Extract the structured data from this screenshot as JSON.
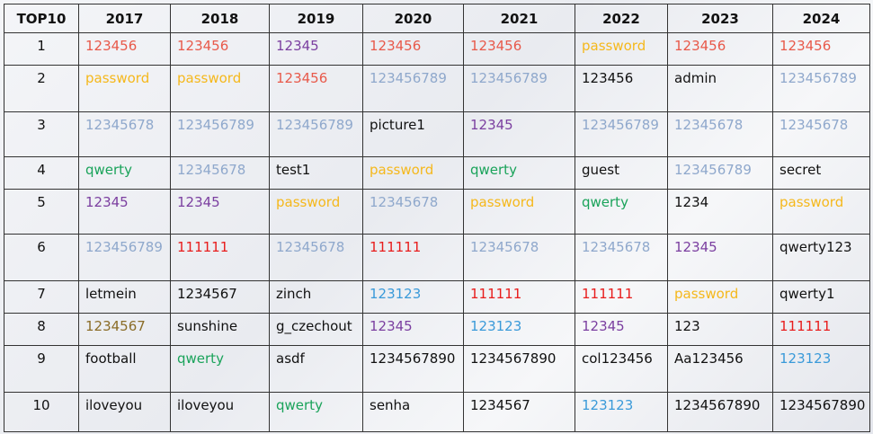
{
  "table": {
    "header": [
      "TOP10",
      "2017",
      "2018",
      "2019",
      "2020",
      "2021",
      "2022",
      "2023",
      "2024"
    ],
    "rows": [
      {
        "rank": "1",
        "cells": [
          {
            "text": "123456",
            "color": "#e8594a"
          },
          {
            "text": "123456",
            "color": "#e8594a"
          },
          {
            "text": "12345",
            "color": "#7b3fa0"
          },
          {
            "text": "123456",
            "color": "#e8594a"
          },
          {
            "text": "123456",
            "color": "#e8594a"
          },
          {
            "text": "password",
            "color": "#f5b81c"
          },
          {
            "text": "123456",
            "color": "#e8594a"
          },
          {
            "text": "123456",
            "color": "#e8594a"
          }
        ]
      },
      {
        "rank": "2",
        "cells": [
          {
            "text": "password",
            "color": "#f5b81c"
          },
          {
            "text": "password",
            "color": "#f5b81c"
          },
          {
            "text": "123456",
            "color": "#e8594a"
          },
          {
            "text": "123456789",
            "color": "#8fa8cc"
          },
          {
            "text": "123456789",
            "color": "#8fa8cc"
          },
          {
            "text": "123456",
            "color": "#111111"
          },
          {
            "text": "admin",
            "color": "#111111"
          },
          {
            "text": "123456789",
            "color": "#8fa8cc"
          }
        ]
      },
      {
        "rank": "3",
        "cells": [
          {
            "text": "12345678",
            "color": "#8fa8cc"
          },
          {
            "text": "123456789",
            "color": "#8fa8cc"
          },
          {
            "text": "123456789",
            "color": "#8fa8cc"
          },
          {
            "text": "picture1",
            "color": "#111111"
          },
          {
            "text": "12345",
            "color": "#7b3fa0"
          },
          {
            "text": "123456789",
            "color": "#8fa8cc"
          },
          {
            "text": "12345678",
            "color": "#8fa8cc"
          },
          {
            "text": "12345678",
            "color": "#8fa8cc"
          }
        ]
      },
      {
        "rank": "4",
        "cells": [
          {
            "text": "qwerty",
            "color": "#1aa35a"
          },
          {
            "text": "12345678",
            "color": "#8fa8cc"
          },
          {
            "text": "test1",
            "color": "#111111"
          },
          {
            "text": "password",
            "color": "#f5b81c"
          },
          {
            "text": "qwerty",
            "color": "#1aa35a"
          },
          {
            "text": "guest",
            "color": "#111111"
          },
          {
            "text": "123456789",
            "color": "#8fa8cc"
          },
          {
            "text": "secret",
            "color": "#111111"
          }
        ]
      },
      {
        "rank": "5",
        "cells": [
          {
            "text": "12345",
            "color": "#7b3fa0"
          },
          {
            "text": "12345",
            "color": "#7b3fa0"
          },
          {
            "text": "password",
            "color": "#f5b81c"
          },
          {
            "text": "12345678",
            "color": "#8fa8cc"
          },
          {
            "text": "password",
            "color": "#f5b81c"
          },
          {
            "text": "qwerty",
            "color": "#1aa35a"
          },
          {
            "text": "1234",
            "color": "#111111"
          },
          {
            "text": "password",
            "color": "#f5b81c"
          }
        ]
      },
      {
        "rank": "6",
        "cells": [
          {
            "text": "123456789",
            "color": "#8fa8cc"
          },
          {
            "text": "111111",
            "color": "#e81c1c"
          },
          {
            "text": "12345678",
            "color": "#8fa8cc"
          },
          {
            "text": "111111",
            "color": "#e81c1c"
          },
          {
            "text": "12345678",
            "color": "#8fa8cc"
          },
          {
            "text": "12345678",
            "color": "#8fa8cc"
          },
          {
            "text": "12345",
            "color": "#7b3fa0"
          },
          {
            "text": "qwerty123",
            "color": "#111111"
          }
        ]
      },
      {
        "rank": "7",
        "cells": [
          {
            "text": "letmein",
            "color": "#111111"
          },
          {
            "text": "1234567",
            "color": "#111111"
          },
          {
            "text": "zinch",
            "color": "#111111"
          },
          {
            "text": "123123",
            "color": "#3a9ad9"
          },
          {
            "text": "111111",
            "color": "#e81c1c"
          },
          {
            "text": "111111",
            "color": "#e81c1c"
          },
          {
            "text": "password",
            "color": "#f5b81c"
          },
          {
            "text": "qwerty1",
            "color": "#111111"
          }
        ]
      },
      {
        "rank": "8",
        "cells": [
          {
            "text": "1234567",
            "color": "#8b6d28"
          },
          {
            "text": "sunshine",
            "color": "#111111"
          },
          {
            "text": "g_czechout",
            "color": "#111111"
          },
          {
            "text": "12345",
            "color": "#7b3fa0"
          },
          {
            "text": "123123",
            "color": "#3a9ad9"
          },
          {
            "text": "12345",
            "color": "#7b3fa0"
          },
          {
            "text": "123",
            "color": "#111111"
          },
          {
            "text": "111111",
            "color": "#e81c1c"
          }
        ]
      },
      {
        "rank": "9",
        "cells": [
          {
            "text": "football",
            "color": "#111111"
          },
          {
            "text": "qwerty",
            "color": "#1aa35a"
          },
          {
            "text": "asdf",
            "color": "#111111"
          },
          {
            "text": "1234567890",
            "color": "#111111"
          },
          {
            "text": "1234567890",
            "color": "#111111"
          },
          {
            "text": "col123456",
            "color": "#111111"
          },
          {
            "text": "Aa123456",
            "color": "#111111"
          },
          {
            "text": "123123",
            "color": "#3a9ad9"
          }
        ]
      },
      {
        "rank": "10",
        "cells": [
          {
            "text": "iloveyou",
            "color": "#111111"
          },
          {
            "text": "iloveyou",
            "color": "#111111"
          },
          {
            "text": "qwerty",
            "color": "#1aa35a"
          },
          {
            "text": "senha",
            "color": "#111111"
          },
          {
            "text": "1234567",
            "color": "#111111"
          },
          {
            "text": "123123",
            "color": "#3a9ad9"
          },
          {
            "text": "1234567890",
            "color": "#111111"
          },
          {
            "text": "1234567890",
            "color": "#111111"
          }
        ]
      }
    ]
  }
}
